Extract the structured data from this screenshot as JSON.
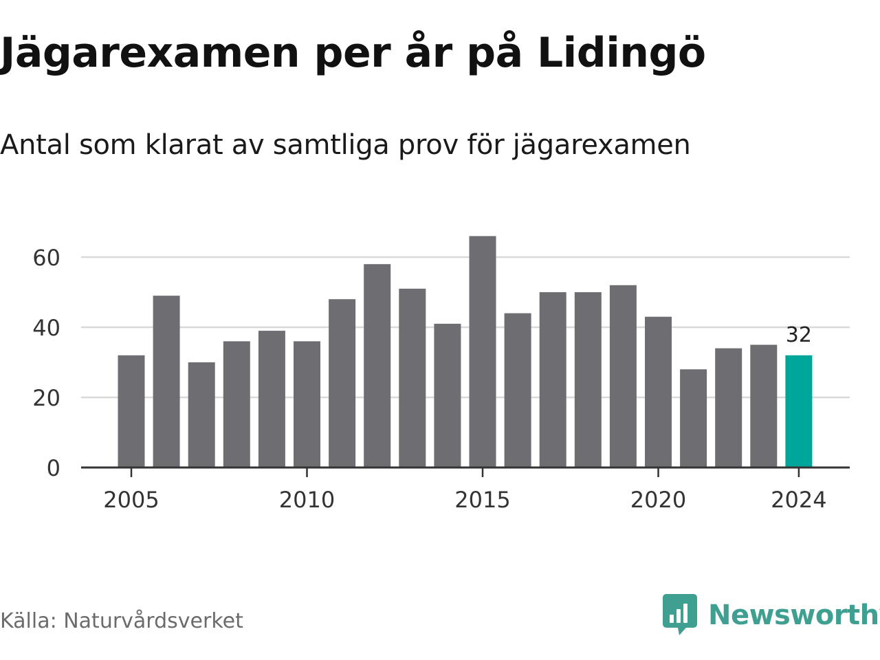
{
  "title": "Jägarexamen per år på Lidingö",
  "subtitle": "Antal som klarat av samtliga prov för jägarexamen",
  "source": "Källa: Naturvårdsverket",
  "brand": {
    "name": "Newsworthy",
    "color": "#3f9f90",
    "icon": "newsworthy-logo-icon"
  },
  "colors": {
    "bar": "#6d6d72",
    "highlight": "#00a69a",
    "grid": "#d9d9d9",
    "axis": "#333333"
  },
  "chart_data": {
    "type": "bar",
    "categories": [
      "2005",
      "2006",
      "2007",
      "2008",
      "2009",
      "2010",
      "2011",
      "2012",
      "2013",
      "2014",
      "2015",
      "2016",
      "2017",
      "2018",
      "2019",
      "2020",
      "2021",
      "2022",
      "2023",
      "2024"
    ],
    "values": [
      32,
      49,
      30,
      36,
      39,
      36,
      48,
      58,
      51,
      41,
      66,
      44,
      50,
      50,
      52,
      43,
      28,
      34,
      35,
      32
    ],
    "highlight_category": "2024",
    "data_labels": [
      {
        "category": "2024",
        "text": "32"
      }
    ],
    "x_tick_labels": [
      "2005",
      "2010",
      "2015",
      "2020",
      "2024"
    ],
    "y_ticks": [
      0,
      20,
      40,
      60
    ],
    "ylim": [
      0,
      66
    ],
    "xlabel": "",
    "ylabel": "",
    "grid": true,
    "legend": "none"
  }
}
